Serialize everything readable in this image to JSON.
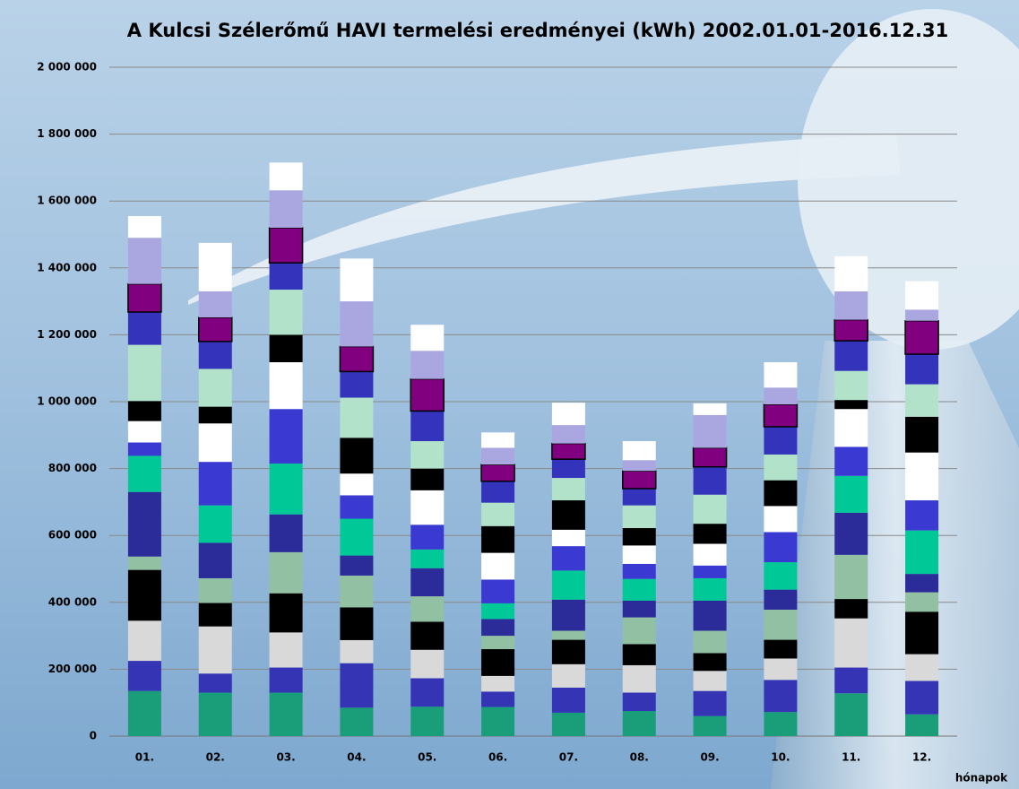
{
  "chart_data": {
    "type": "stacked_bar",
    "title": "A Kulcsi Szélerőmű HAVI termelési eredményei (kWh) 2002.01.01-2016.12.31",
    "x_label": "hónapok",
    "categories": [
      "01.",
      "02.",
      "03.",
      "04.",
      "05.",
      "06.",
      "07.",
      "08.",
      "09.",
      "10.",
      "11.",
      "12."
    ],
    "series": [
      {
        "color": "#1a9e7a",
        "values": [
          135000,
          130000,
          130000,
          85000,
          88000,
          87000,
          70000,
          75000,
          60000,
          72000,
          128000,
          65000
        ]
      },
      {
        "color": "#3434b4",
        "values": [
          90000,
          57000,
          75000,
          133000,
          85000,
          46000,
          75000,
          55000,
          75000,
          96000,
          77000,
          100000
        ]
      },
      {
        "color": "#d9d9d9",
        "values": [
          120000,
          141000,
          105000,
          69000,
          85000,
          47000,
          70000,
          82000,
          60000,
          64000,
          147000,
          80000
        ]
      },
      {
        "color": "#000000",
        "values": [
          152000,
          70000,
          117000,
          98000,
          84000,
          80000,
          73000,
          63000,
          53000,
          56000,
          58000,
          127000
        ]
      },
      {
        "color": "#92c0a2",
        "values": [
          40000,
          74000,
          123000,
          95000,
          76000,
          40000,
          27000,
          80000,
          67000,
          90000,
          132000,
          58000
        ]
      },
      {
        "color": "#2b2b9a",
        "values": [
          193000,
          106000,
          113000,
          60000,
          84000,
          50000,
          93000,
          50000,
          90000,
          60000,
          126000,
          55000
        ]
      },
      {
        "color": "#00c896",
        "values": [
          108000,
          112000,
          152000,
          110000,
          56000,
          47000,
          87000,
          65000,
          67000,
          82000,
          110000,
          130000
        ]
      },
      {
        "color": "#3a3ad2",
        "values": [
          40000,
          130000,
          163000,
          70000,
          74000,
          71000,
          73000,
          45000,
          38000,
          90000,
          87000,
          90000
        ]
      },
      {
        "color": "#ffffff",
        "values": [
          64000,
          115000,
          140000,
          65000,
          103000,
          80000,
          49000,
          55000,
          65000,
          78000,
          113000,
          143000
        ]
      },
      {
        "color": "#000000",
        "values": [
          60000,
          50000,
          82000,
          107000,
          65000,
          80000,
          88000,
          52000,
          60000,
          77000,
          27000,
          107000
        ]
      },
      {
        "color": "#b2e2ca",
        "values": [
          168000,
          113000,
          135000,
          120000,
          82000,
          70000,
          67000,
          68000,
          87000,
          77000,
          87000,
          97000
        ]
      },
      {
        "color": "#3333bb",
        "values": [
          98000,
          82000,
          80000,
          78000,
          90000,
          64000,
          56000,
          50000,
          83000,
          83000,
          90000,
          90000
        ]
      },
      {
        "color": "#800080",
        "edgecolor": "#000000",
        "values": [
          84000,
          72000,
          105000,
          75000,
          96000,
          50000,
          47000,
          53000,
          57000,
          67000,
          63000,
          100000
        ]
      },
      {
        "color": "#aaa6e0",
        "values": [
          138000,
          78000,
          112000,
          135000,
          84000,
          50000,
          55000,
          32000,
          98000,
          50000,
          85000,
          33000
        ]
      },
      {
        "color": "#ffffff",
        "values": [
          65000,
          145000,
          83000,
          128000,
          78000,
          46000,
          67000,
          57000,
          35000,
          76000,
          105000,
          85000
        ]
      }
    ],
    "ylim": [
      0,
      2000000
    ],
    "yticks": [
      0,
      {
        "value": 200000,
        "label": "200 000"
      },
      {
        "value": 400000,
        "label": "400 000"
      },
      {
        "value": 600000,
        "label": "600 000"
      },
      {
        "value": 800000,
        "label": "800 000"
      },
      {
        "value": 1000000,
        "label": "1 000 000"
      },
      {
        "value": 1200000,
        "label": "1 200 000"
      },
      {
        "value": 1400000,
        "label": "1 400 000"
      },
      {
        "value": 1600000,
        "label": "1 600 000"
      },
      {
        "value": 1800000,
        "label": "1 800 000"
      },
      {
        "value": 2000000,
        "label": "2 000 000"
      }
    ],
    "grid": true
  }
}
